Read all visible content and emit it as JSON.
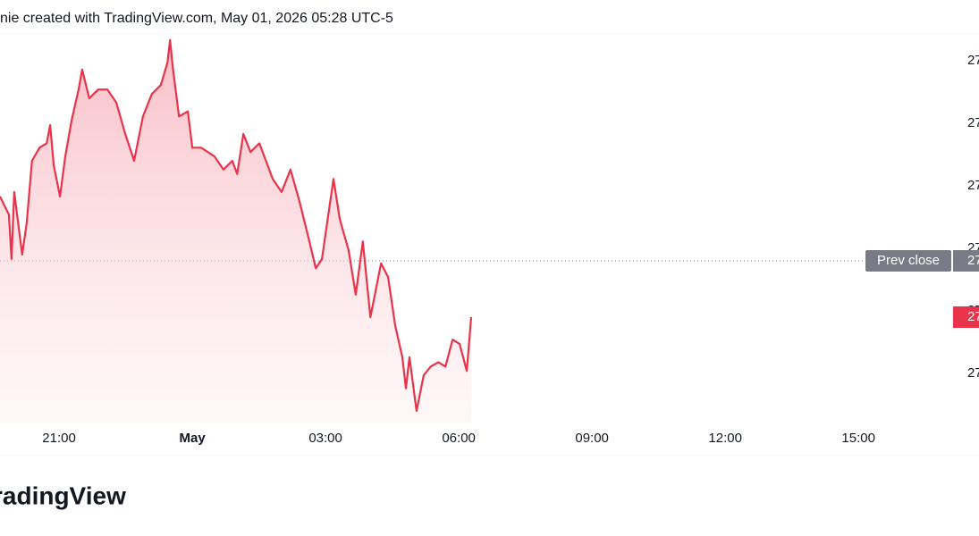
{
  "chart_data": {
    "type": "line",
    "header": "nie created with TradingView.com, May 01, 2026 05:28 UTC-5",
    "logo": "radingView",
    "x": [
      19.67,
      19.87,
      19.93,
      19.99,
      20.17,
      20.27,
      20.39,
      20.56,
      20.72,
      20.8,
      20.88,
      21.02,
      21.14,
      21.28,
      21.44,
      21.52,
      21.68,
      21.88,
      22.09,
      22.29,
      22.49,
      22.69,
      22.89,
      23.09,
      23.29,
      23.44,
      23.5,
      23.56,
      23.7,
      23.9,
      24.0,
      24.2,
      24.5,
      24.7,
      24.9,
      25.01,
      25.15,
      25.31,
      25.51,
      25.81,
      26.01,
      26.21,
      26.41,
      26.62,
      26.78,
      26.92,
      27.18,
      27.32,
      27.52,
      27.68,
      27.84,
      28.01,
      28.25,
      28.41,
      28.57,
      28.73,
      28.81,
      28.89,
      29.05,
      29.21,
      29.37,
      29.54,
      29.7,
      29.86,
      30.02,
      30.18,
      30.28
    ],
    "series": [
      {
        "color": "#e8334a",
        "values": [
          2728.3,
          2725.4,
          2718.3,
          2729.0,
          2719.0,
          2724.0,
          2734.0,
          2736.1,
          2736.8,
          2739.7,
          2733.3,
          2728.3,
          2734.7,
          2740.4,
          2745.4,
          2748.6,
          2744.0,
          2745.4,
          2745.4,
          2743.3,
          2738.3,
          2734.0,
          2741.1,
          2744.7,
          2746.1,
          2749.7,
          2753.3,
          2749.0,
          2741.1,
          2741.9,
          2736.1,
          2736.1,
          2734.7,
          2732.6,
          2734.0,
          2731.9,
          2738.3,
          2735.4,
          2736.8,
          2731.1,
          2729.0,
          2732.6,
          2727.6,
          2721.6,
          2716.8,
          2718.3,
          2731.1,
          2724.7,
          2719.7,
          2712.6,
          2721.1,
          2709.0,
          2717.6,
          2715.4,
          2707.6,
          2702.6,
          2697.6,
          2702.6,
          2694.0,
          2699.7,
          2701.1,
          2701.8,
          2701.1,
          2705.4,
          2704.7,
          2700.4,
          2709.0
        ]
      }
    ],
    "last_price_label": "27",
    "prev_close": {
      "name": "Prev close",
      "value": 2718,
      "label": "27"
    },
    "xlim": [
      19.67,
      41.11
    ],
    "xticks": [
      {
        "value": 21,
        "label": "21:00"
      },
      {
        "value": 24,
        "label": "May"
      },
      {
        "value": 27,
        "label": "03:00"
      },
      {
        "value": 30,
        "label": "06:00"
      },
      {
        "value": 33,
        "label": "09:00"
      },
      {
        "value": 36,
        "label": "12:00"
      },
      {
        "value": 39,
        "label": "15:00"
      }
    ],
    "ylim": [
      2692,
      2754
    ],
    "yticks": [
      {
        "value": 2700,
        "label": "27"
      },
      {
        "value": 2710,
        "label": "27"
      },
      {
        "value": 2720,
        "label": "27"
      },
      {
        "value": 2730,
        "label": "27"
      },
      {
        "value": 2740,
        "label": "27"
      },
      {
        "value": 2750,
        "label": "27"
      }
    ]
  }
}
